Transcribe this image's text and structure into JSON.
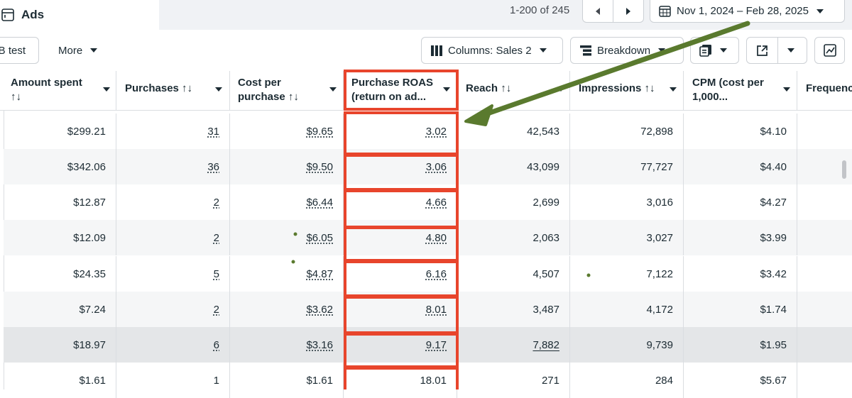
{
  "header": {
    "tab_label": "Ads",
    "pagination": "1-200 of 245",
    "date_range": "Nov 1, 2024 – Feb 28, 2025"
  },
  "toolbar": {
    "ab_test": "B test",
    "more": "More",
    "columns": "Columns: Sales 2",
    "breakdown": "Breakdown"
  },
  "table": {
    "columns": [
      {
        "line1": "Amount spent",
        "line2": "↑↓"
      },
      {
        "line1": "Purchases ↑↓",
        "line2": ""
      },
      {
        "line1": "Cost per",
        "line2": "purchase ↑↓"
      },
      {
        "line1": "Purchase ROAS",
        "line2": "(return on ad..."
      },
      {
        "line1": "Reach ↑↓",
        "line2": ""
      },
      {
        "line1": "Impressions ↑↓",
        "line2": ""
      },
      {
        "line1": "CPM (cost per",
        "line2": "1,000..."
      },
      {
        "line1": "Frequenc",
        "line2": ""
      }
    ],
    "rows": [
      {
        "amount_spent": "$299.21",
        "purchases": "31",
        "cost_per_purchase": "$9.65",
        "roas": "3.02",
        "reach": "42,543",
        "impressions": "72,898",
        "cpm": "$4.10"
      },
      {
        "amount_spent": "$342.06",
        "purchases": "36",
        "cost_per_purchase": "$9.50",
        "roas": "3.06",
        "reach": "43,099",
        "impressions": "77,727",
        "cpm": "$4.40"
      },
      {
        "amount_spent": "$12.87",
        "purchases": "2",
        "cost_per_purchase": "$6.44",
        "roas": "4.66",
        "reach": "2,699",
        "impressions": "3,016",
        "cpm": "$4.27"
      },
      {
        "amount_spent": "$12.09",
        "purchases": "2",
        "cost_per_purchase": "$6.05",
        "roas": "4.80",
        "reach": "2,063",
        "impressions": "3,027",
        "cpm": "$3.99"
      },
      {
        "amount_spent": "$24.35",
        "purchases": "5",
        "cost_per_purchase": "$4.87",
        "roas": "6.16",
        "reach": "4,507",
        "impressions": "7,122",
        "cpm": "$3.42"
      },
      {
        "amount_spent": "$7.24",
        "purchases": "2",
        "cost_per_purchase": "$3.62",
        "roas": "8.01",
        "reach": "3,487",
        "impressions": "4,172",
        "cpm": "$1.74"
      },
      {
        "amount_spent": "$18.97",
        "purchases": "6",
        "cost_per_purchase": "$3.16",
        "roas": "9.17",
        "reach": "7,882",
        "impressions": "9,739",
        "cpm": "$1.95"
      },
      {
        "amount_spent": "$1.61",
        "purchases": "1",
        "cost_per_purchase": "$1.61",
        "roas": "18.01",
        "reach": "271",
        "impressions": "284",
        "cpm": "$5.67"
      }
    ]
  },
  "colors": {
    "highlight_box": "#e8452c",
    "arrow": "#5a7a2e",
    "row_alt": "#f5f6f7",
    "row_selected": "#e4e6e8",
    "border": "#dadde1"
  },
  "icons": {
    "tab": "table-icon",
    "prev": "triangle-left-icon",
    "next": "triangle-right-icon",
    "date": "calendar-icon",
    "columns": "columns-icon",
    "breakdown": "breakdown-icon",
    "report": "report-icon",
    "share": "export-icon",
    "chart": "chart-icon"
  }
}
